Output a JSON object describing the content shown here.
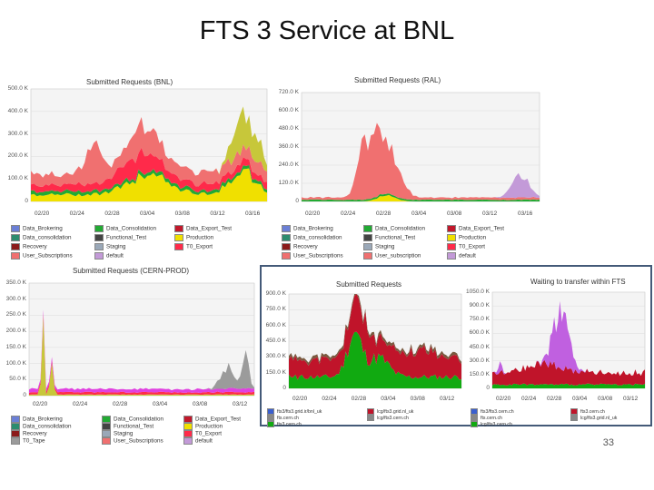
{
  "title": "FTS 3 Service at BNL",
  "page_number": "33",
  "colors": {
    "Data_Brokering": "#6b7fd6",
    "Data_Consolidation": "#22aa33",
    "Data_Export_Test": "#c2182b",
    "Data_consolidation": "#2d8c6e",
    "Functional_Test": "#444444",
    "Production": "#f0e000",
    "Recovery": "#8b1a1a",
    "Staging": "#9aa8b8",
    "T0_Export": "#ff2a4a",
    "User_Subscriptions": "#f07070",
    "default": "#c39ad8",
    "T0_Tape": "#9b9b9b",
    "bnl_blue": "#3a5fcf",
    "bnl_green": "#11aa11",
    "bnl_red": "#c0142a",
    "bnl_grey": "#888888"
  },
  "panels": {
    "bnl": {
      "title": "Submitted Requests (BNL)",
      "yticks": [
        "500.0 K",
        "400.0 K",
        "300.0 K",
        "200.0 K",
        "100.0 K",
        "0"
      ],
      "xticks": [
        "02/20",
        "02/24",
        "02/28",
        "03/04",
        "03/08",
        "03/12",
        "03/16"
      ],
      "legend": [
        [
          "Data_Brokering",
          "Data_Consolidation",
          "Data_Export_Test"
        ],
        [
          "Data_consolidation",
          "Functional_Test",
          "Production"
        ],
        [
          "Recovery",
          "Staging",
          "T0_Export"
        ],
        [
          "User_Subscriptions",
          "default"
        ]
      ]
    },
    "ral": {
      "title": "Submitted Requests (RAL)",
      "yticks": [
        "720.0 K",
        "600.0 K",
        "480.0 K",
        "360.0 K",
        "240.0 K",
        "120.0 K",
        "0"
      ],
      "xticks": [
        "02/20",
        "02/24",
        "02/28",
        "03/04",
        "03/08",
        "03/12",
        "03/16"
      ],
      "legend": [
        [
          "Data_Brokering",
          "Data_Consolidation",
          "Data_Export_Test"
        ],
        [
          "Data_consolidation",
          "Functional_Test",
          "Production"
        ],
        [
          "Recovery",
          "Staging",
          "T0_Export"
        ],
        [
          "User_Subscriptions",
          "User_subscription",
          "default"
        ]
      ]
    },
    "cern": {
      "title": "Submitted Requests (CERN-PROD)",
      "yticks": [
        "350.0 K",
        "300.0 K",
        "250.0 K",
        "200.0 K",
        "150.0 K",
        "100.0 K",
        "50.0 K",
        "0"
      ],
      "xticks": [
        "02/20",
        "02/24",
        "02/28",
        "03/04",
        "03/08",
        "03/12"
      ],
      "legend": [
        [
          "Data_Brokering",
          "Data_Consolidation",
          "Data_Export_Test"
        ],
        [
          "Data_consolidation",
          "Functional_Test",
          "Production"
        ],
        [
          "Recovery",
          "Staging",
          "T0_Export"
        ],
        [
          "T0_Tape",
          "User_Subscriptions",
          "default"
        ]
      ]
    },
    "bnl_submitted": {
      "title": "Submitted Requests",
      "yticks": [
        "900.0 K",
        "750.0 K",
        "600.0 K",
        "450.0 K",
        "300.0 K",
        "150.0 K",
        "0"
      ],
      "xticks": [
        "02/20",
        "02/24",
        "02/28",
        "03/04",
        "03/08",
        "03/12"
      ],
      "legend": [
        "fts3/fts3.grid.ir/bnl_uk",
        "fts.cern.ch",
        "fts3.cern.ch",
        "lcg/fts3.grid.nl_uk",
        "lcg/fts3.cern.ch"
      ]
    },
    "bnl_waiting": {
      "title": "Waiting to transfer within FTS",
      "yticks": [
        "1050.0 K",
        "900.0 K",
        "750.0 K",
        "600.0 K",
        "450.0 K",
        "300.0 K",
        "150.0 K",
        "0"
      ],
      "xticks": [
        "02/20",
        "02/24",
        "02/28",
        "03/04",
        "03/08",
        "03/12"
      ],
      "legend": [
        "fts3/fts3.cern.ch",
        "fts.cern.ch",
        "lcg/fts3.cern.ch",
        "fts3.cern.ch",
        "lcg/fts3.grid.nl_uk"
      ]
    }
  }
}
